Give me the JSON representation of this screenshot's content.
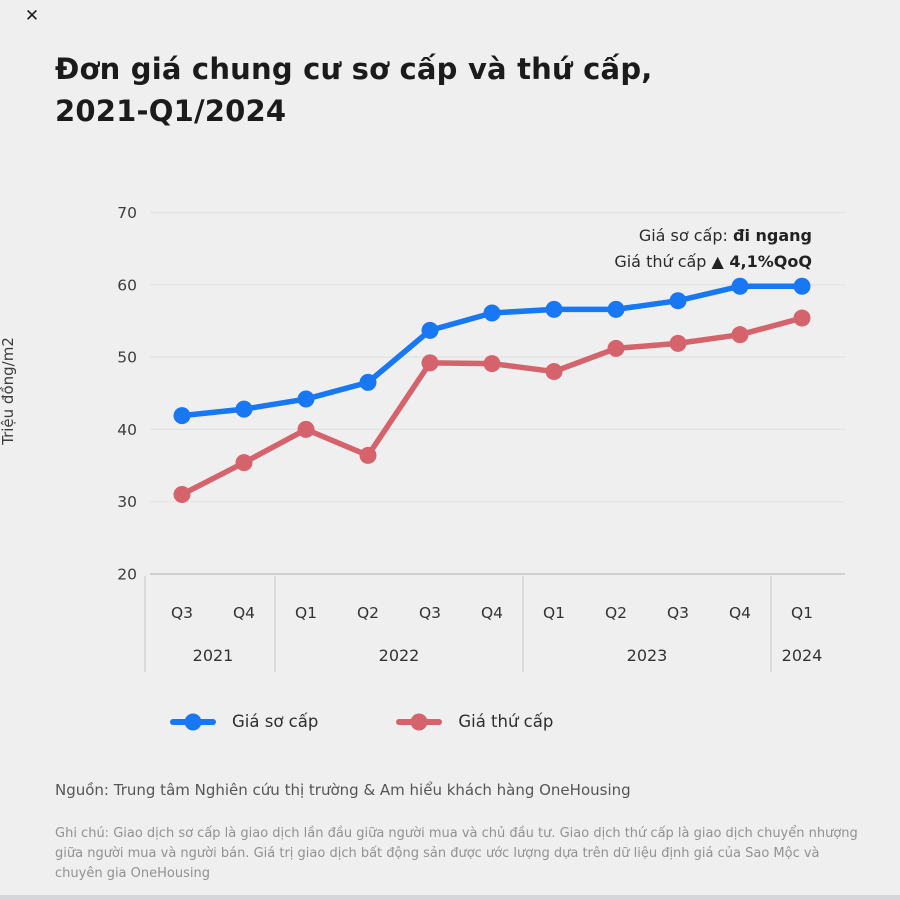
{
  "page": {
    "close_icon": "✕",
    "title_line1": "Đơn giá chung cư sơ cấp và thứ cấp,",
    "title_line2": "2021-Q1/2024",
    "source": "Nguồn: Trung tâm Nghiên cứu thị trường & Am hiểu khách hàng OneHousing",
    "note": "Ghi chú: Giao dịch sơ cấp là giao dịch lần đầu giữa người mua và chủ đầu tư. Giao dịch thứ cấp là giao dịch chuyển nhượng giữa người mua và người bán. Giá trị giao dịch bất động sản được ước lượng dựa trên dữ liệu định giá của Sao Mộc và chuyên gia OneHousing"
  },
  "annotation": {
    "line1_normal": "Giá sơ cấp: ",
    "line1_bold": "đi ngang",
    "line2_normal": "Giá thứ cấp ",
    "line2_bold": "▲ 4,1%QoQ"
  },
  "colors": {
    "primary": "#1877f2",
    "secondary": "#d4636c",
    "background": "#efefef",
    "gridline": "#e2e2e2",
    "axis_line": "#c6c6c6",
    "separator": "#d2d2d2",
    "tick_text": "#3d3d3d"
  },
  "chart_data": {
    "type": "line",
    "title": "Đơn giá chung cư sơ cấp và thứ cấp, 2021-Q1/2024",
    "xlabel": "",
    "ylabel": "Triệu đồng/m2",
    "ylim": [
      20,
      70
    ],
    "yticks": [
      70,
      60,
      50,
      40,
      30,
      20
    ],
    "grid": true,
    "legend_position": "bottom",
    "categories": [
      "Q3",
      "Q4",
      "Q1",
      "Q2",
      "Q3",
      "Q4",
      "Q1",
      "Q2",
      "Q3",
      "Q4",
      "Q1"
    ],
    "year_groups": [
      {
        "label": "2021",
        "span": [
          0,
          1
        ]
      },
      {
        "label": "2022",
        "span": [
          2,
          5
        ]
      },
      {
        "label": "2023",
        "span": [
          6,
          9
        ]
      },
      {
        "label": "2024",
        "span": [
          10,
          10
        ]
      }
    ],
    "series": [
      {
        "name": "Giá sơ cấp",
        "color": "#1877f2",
        "values": [
          41.9,
          42.8,
          44.2,
          46.5,
          53.7,
          56.1,
          56.6,
          56.6,
          57.8,
          59.8,
          59.8
        ]
      },
      {
        "name": "Giá thứ cấp",
        "color": "#d4636c",
        "values": [
          31.0,
          35.4,
          40.0,
          36.4,
          49.2,
          49.1,
          48.0,
          51.2,
          51.9,
          53.1,
          55.4
        ]
      }
    ]
  }
}
